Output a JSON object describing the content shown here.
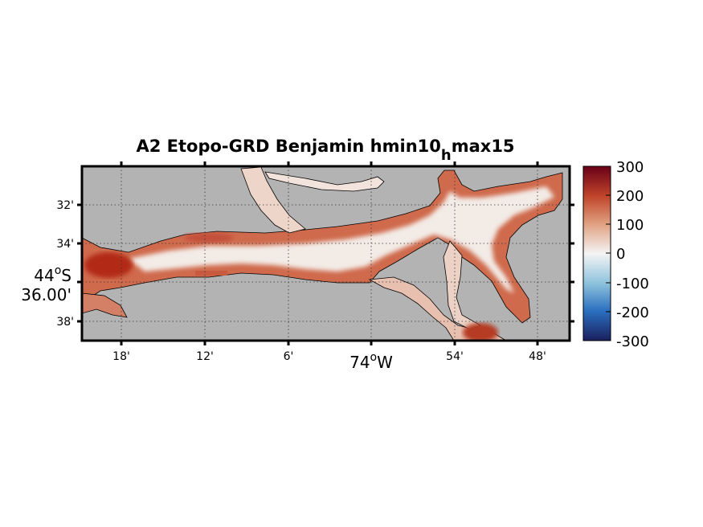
{
  "title": {
    "main": "A2 Etopo-GRD Benjamin hmin10",
    "subscript": "h",
    "rest": "max15"
  },
  "x_axis": {
    "ticks": [
      "18'",
      "12'",
      "6'",
      "54'",
      "48'"
    ],
    "center_label": "74",
    "center_suffix": "W",
    "degree_symbol": "o"
  },
  "y_axis": {
    "ticks": [
      "32'",
      "34'",
      "38'"
    ],
    "center_deg": "44",
    "center_suffix": "S",
    "center_min": "36.00'",
    "degree_symbol": "o"
  },
  "colorbar": {
    "ticks": [
      "300",
      "200",
      "100",
      "0",
      "-100",
      "-200",
      "-300"
    ],
    "range": [
      -300,
      300
    ],
    "colors": [
      "#1a1f5e",
      "#2a6fbf",
      "#8fc3dd",
      "#f4f4f4",
      "#e0a080",
      "#c0442a",
      "#6a0018"
    ]
  },
  "colors": {
    "land": "#b3b3b3",
    "coast": "#000000",
    "frame": "#000000",
    "channel_light": "#f6f1ee",
    "channel_mid": "#e8bba8",
    "channel_dark": "#c44a2e",
    "channel_deep": "#b22a17"
  }
}
